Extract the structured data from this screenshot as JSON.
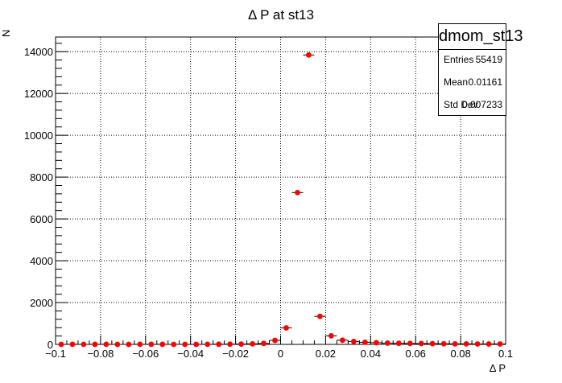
{
  "chart_data": {
    "type": "scatter",
    "title": "Δ P at st13",
    "xlabel": "Δ P",
    "ylabel": "N",
    "xlim": [
      -0.1,
      0.1
    ],
    "ylim": [
      0,
      14700
    ],
    "grid": true,
    "x_ticks": [
      -0.1,
      -0.08,
      -0.06,
      -0.04,
      -0.02,
      0,
      0.02,
      0.04,
      0.06,
      0.08,
      0.1
    ],
    "x_tick_labels": [
      "−0.1",
      "−0.08",
      "−0.06",
      "−0.04",
      "−0.02",
      "0",
      "0.02",
      "0.04",
      "0.06",
      "0.08",
      "0.1"
    ],
    "y_ticks": [
      0,
      2000,
      4000,
      6000,
      8000,
      10000,
      12000,
      14000
    ],
    "y_tick_labels": [
      "0",
      "2000",
      "4000",
      "6000",
      "8000",
      "10000",
      "12000",
      "14000"
    ],
    "bin_width": 0.005,
    "marker_color": "#ff0000",
    "series": [
      {
        "x": [
          -0.0975,
          -0.0925,
          -0.0875,
          -0.0825,
          -0.0775,
          -0.0725,
          -0.0675,
          -0.0625,
          -0.0575,
          -0.0525,
          -0.0475,
          -0.0425,
          -0.0375,
          -0.0325,
          -0.0275,
          -0.0225,
          -0.0175,
          -0.0125,
          -0.0075,
          -0.0025,
          0.0025,
          0.0075,
          0.0125,
          0.0175,
          0.0225,
          0.0275,
          0.0325,
          0.0375,
          0.0425,
          0.0475,
          0.0525,
          0.0575,
          0.0625,
          0.0675,
          0.0725,
          0.0775,
          0.0825,
          0.0875,
          0.0925,
          0.0975
        ],
        "y": [
          0,
          5,
          0,
          3,
          5,
          0,
          0,
          4,
          4,
          3,
          0,
          0,
          0,
          5,
          8,
          10,
          15,
          25,
          45,
          190,
          790,
          7260,
          13840,
          1340,
          410,
          200,
          140,
          100,
          80,
          60,
          50,
          45,
          40,
          35,
          30,
          25,
          25,
          20,
          20,
          20
        ]
      }
    ]
  },
  "stats": {
    "title": "dmom_st13",
    "rows": [
      {
        "label": "Entries",
        "value": "55419"
      },
      {
        "label": "Mean",
        "value": "0.01161"
      },
      {
        "label": "Std Dev",
        "value": "0.007233"
      }
    ]
  }
}
